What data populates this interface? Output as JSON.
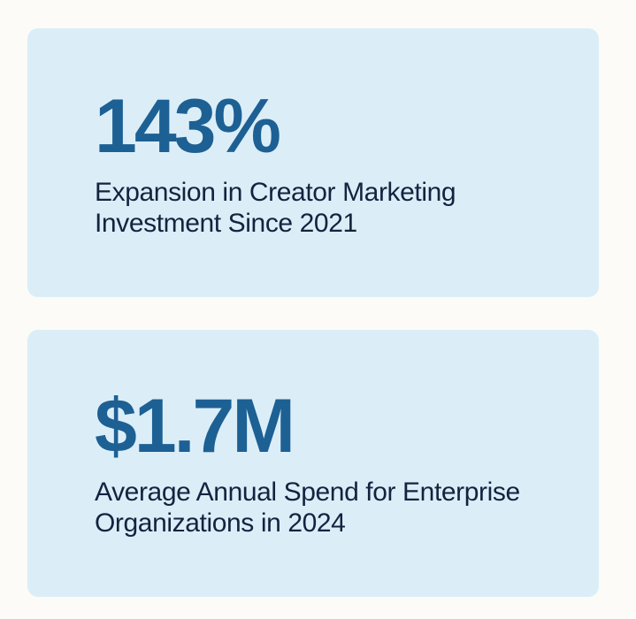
{
  "stats": [
    {
      "value": "143%",
      "description": "Expansion in Creator Marketing Investment Since 2021"
    },
    {
      "value": "$1.7M",
      "description": "Average Annual Spend for Enterprise Organizations in 2024"
    }
  ],
  "colors": {
    "background": "#fcfbf7",
    "card": "#dbeef8",
    "value_text": "#1d6094",
    "description_text": "#14233f"
  }
}
